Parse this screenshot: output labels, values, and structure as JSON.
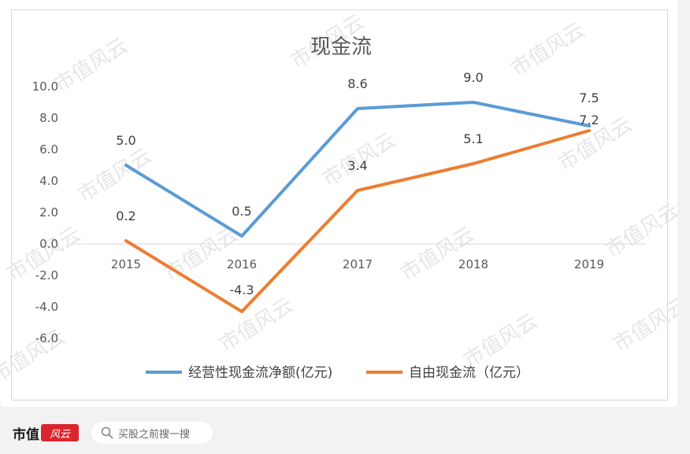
{
  "chart_data": {
    "type": "line",
    "title": "现金流",
    "categories": [
      "2015",
      "2016",
      "2017",
      "2018",
      "2019"
    ],
    "ylim": [
      -6.0,
      10.0
    ],
    "yticks": [
      "10.0",
      "8.0",
      "6.0",
      "4.0",
      "2.0",
      "0.0",
      "-2.0",
      "-4.0",
      "-6.0"
    ],
    "grid": false,
    "legend_position": "bottom",
    "series": [
      {
        "name": "经营性现金流净额(亿元)",
        "values": [
          5.0,
          0.5,
          8.6,
          9.0,
          7.5
        ],
        "labels": [
          "5.0",
          "0.5",
          "8.6",
          "9.0",
          "7.5"
        ],
        "color": "#5b9bd5"
      },
      {
        "name": "自由现金流（亿元）",
        "values": [
          0.2,
          -4.3,
          3.4,
          5.1,
          7.2
        ],
        "labels": [
          "0.2",
          "-4.3",
          "3.4",
          "5.1",
          "7.2"
        ],
        "color": "#ed7d31"
      }
    ]
  },
  "watermark": "市值风云",
  "footer": {
    "brand_text": "市值",
    "brand_mark": "风云",
    "search_placeholder": "买股之前搜一搜"
  }
}
